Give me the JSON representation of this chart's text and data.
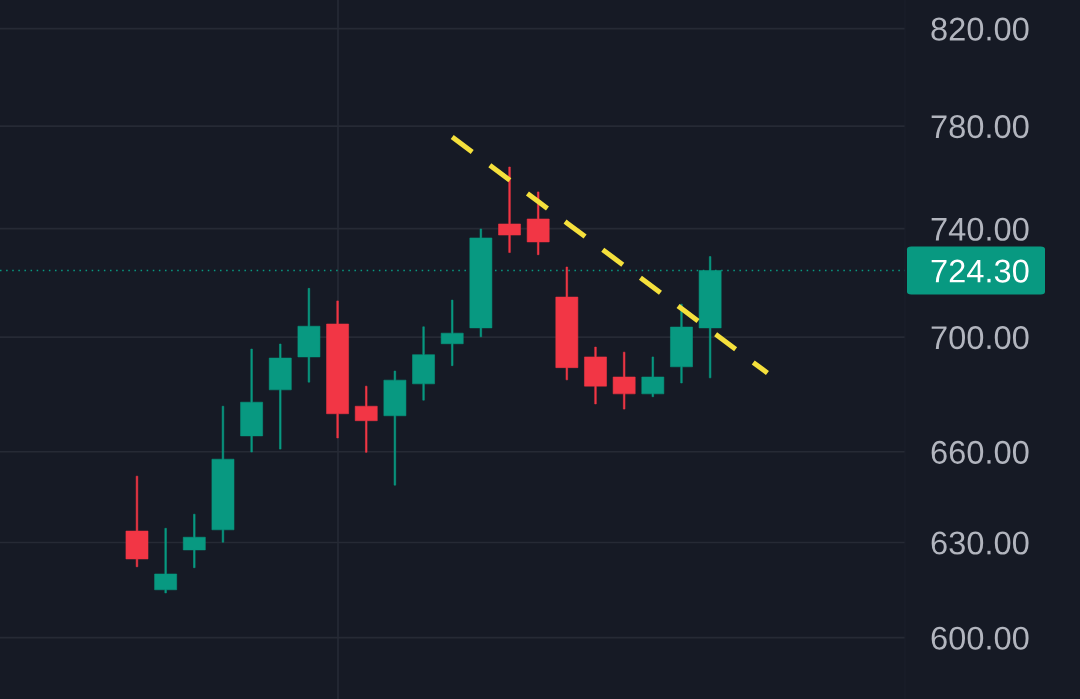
{
  "chart_data": {
    "type": "candlestick",
    "categories": [
      null,
      null,
      null,
      null,
      null,
      null,
      null,
      null,
      null,
      null,
      null,
      null,
      null,
      null,
      null,
      null,
      null,
      null,
      null,
      null,
      null,
      null,
      null
    ],
    "ohlc": [
      [
        633.7,
        651.8,
        622.2,
        624.7
      ],
      [
        614.9,
        634.6,
        613.9,
        619.9
      ],
      [
        627.6,
        639.2,
        621.9,
        631.7
      ],
      [
        634.1,
        675.6,
        630.1,
        657.5
      ],
      [
        665.4,
        695.7,
        659.9,
        677.0
      ],
      [
        681.3,
        697.5,
        660.9,
        692.5
      ],
      [
        692.9,
        717.7,
        684.0,
        703.9
      ],
      [
        704.7,
        713.1,
        664.7,
        673.0
      ],
      [
        675.6,
        682.6,
        659.8,
        670.6
      ],
      [
        672.3,
        687.9,
        648.8,
        684.7
      ],
      [
        683.4,
        703.7,
        677.7,
        693.7
      ],
      [
        697.6,
        713.4,
        689.8,
        701.4
      ],
      [
        703.3,
        739.9,
        700.1,
        736.5
      ],
      [
        741.8,
        763.8,
        731.0,
        737.6
      ],
      [
        743.7,
        754.1,
        730.2,
        735.0
      ],
      [
        714.5,
        725.6,
        684.8,
        689.1
      ],
      [
        692.9,
        696.4,
        676.4,
        682.6
      ],
      [
        685.8,
        694.6,
        674.6,
        679.9
      ],
      [
        679.9,
        692.9,
        678.9,
        685.8
      ],
      [
        689.4,
        711.9,
        683.7,
        703.6
      ],
      [
        703.3,
        729.5,
        685.5,
        724.3
      ],
      null,
      null
    ],
    "colors": [
      "#f23645",
      "#089981",
      "#089981",
      "#089981",
      "#089981",
      "#089981",
      "#089981",
      "#f23645",
      "#f23645",
      "#089981",
      "#089981",
      "#089981",
      "#089981",
      "#f23645",
      "#f23645",
      "#f23645",
      "#f23645",
      "#f23645",
      "#089981",
      "#089981",
      "#089981",
      null,
      null
    ],
    "series": [
      {
        "type": "line",
        "values": [
          null,
          null,
          null,
          null,
          null,
          null,
          null,
          null,
          null,
          null,
          null,
          775.6,
          767.1,
          758.7,
          750.4,
          742.2,
          734.1,
          726.1,
          718.2,
          710.3,
          702.5,
          694.8,
          687.2
        ],
        "color": "#f5e03c",
        "line_style": "dashed"
      }
    ],
    "log": "y",
    "ylim": [
      581.4,
      832.1
    ],
    "yticks": [
      {
        "value": 600,
        "label": "600.00"
      },
      {
        "value": 630,
        "label": "630.00"
      },
      {
        "value": 660,
        "label": "660.00"
      },
      {
        "value": 700,
        "label": "700.00"
      },
      {
        "value": 740,
        "label": "740.00"
      },
      {
        "value": 780,
        "label": "780.00"
      },
      {
        "value": 820,
        "label": "820.00"
      }
    ],
    "grid": "y",
    "ref_lines": [
      {
        "axis": "y",
        "value": 724.3,
        "label": "724.30",
        "color": "#089981",
        "line_style": "dotted"
      }
    ]
  }
}
